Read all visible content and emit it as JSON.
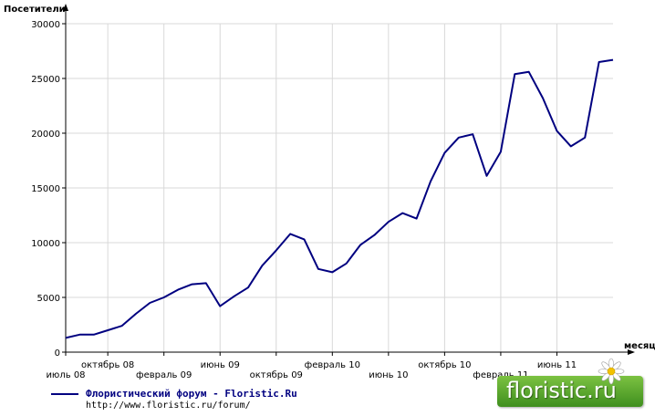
{
  "chart_data": {
    "type": "line",
    "ylabel": "Посетители",
    "xlabel": "месяц",
    "ylim": [
      0,
      30000
    ],
    "yticks": [
      0,
      5000,
      10000,
      15000,
      20000,
      25000,
      30000
    ],
    "xticks": [
      {
        "x": 0,
        "label": "июль 08",
        "row": 2
      },
      {
        "x": 3,
        "label": "октябрь 08",
        "row": 1
      },
      {
        "x": 7,
        "label": "февраль 09",
        "row": 2
      },
      {
        "x": 11,
        "label": "июнь 09",
        "row": 1
      },
      {
        "x": 15,
        "label": "октябрь 09",
        "row": 2
      },
      {
        "x": 19,
        "label": "февраль 10",
        "row": 1
      },
      {
        "x": 23,
        "label": "июнь 10",
        "row": 2
      },
      {
        "x": 27,
        "label": "октябрь 10",
        "row": 1
      },
      {
        "x": 31,
        "label": "февраль 11",
        "row": 2
      },
      {
        "x": 35,
        "label": "июнь 11",
        "row": 1
      }
    ],
    "xlim": [
      0,
      39
    ],
    "grid": true,
    "legend_position": "bottom-left",
    "series": [
      {
        "name": "Флористический форум - Floristic.Ru",
        "color": "#000080",
        "x": [
          0,
          1,
          2,
          3,
          4,
          5,
          6,
          7,
          8,
          9,
          10,
          11,
          12,
          13,
          14,
          15,
          16,
          17,
          18,
          19,
          20,
          21,
          22,
          23,
          24,
          25,
          26,
          27,
          28,
          29,
          30,
          31,
          32,
          33,
          34,
          35,
          36,
          37,
          38,
          39
        ],
        "values": [
          1300,
          1600,
          1600,
          2000,
          2400,
          3500,
          4500,
          5000,
          5700,
          6200,
          6300,
          4200,
          5100,
          5900,
          7900,
          9300,
          10800,
          10300,
          7600,
          7300,
          8100,
          9800,
          10700,
          11900,
          12700,
          12200,
          15600,
          18200,
          19600,
          19900,
          16100,
          18300,
          25400,
          25600,
          23200,
          20200,
          18800,
          19600,
          26500,
          26700
        ]
      }
    ]
  },
  "legend": {
    "title": "Флористический форум - Floristic.Ru",
    "url": "http://www.floristic.ru/forum/"
  },
  "brand": {
    "text": "floristic.ru"
  }
}
